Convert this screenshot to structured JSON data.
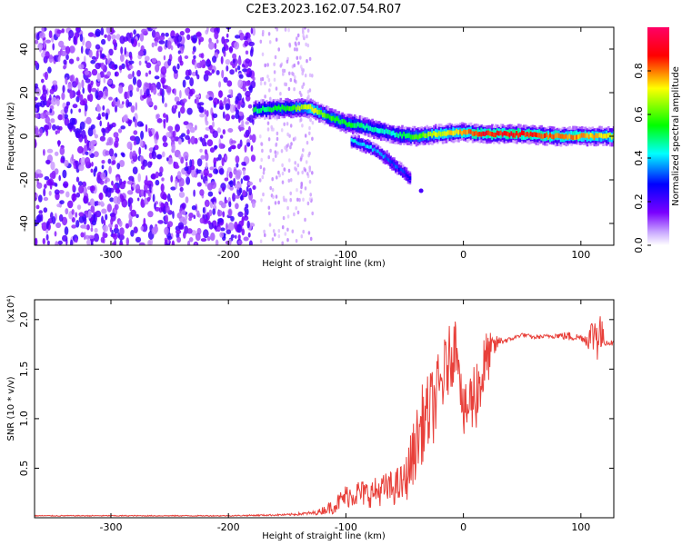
{
  "title": "C2E3.2023.162.07.54.R07",
  "chart_data": [
    {
      "type": "heatmap",
      "xlabel": "Height of straight line (km)",
      "ylabel": "Frequency (Hz)",
      "xlim": [
        -365,
        128
      ],
      "ylim": [
        -50,
        50
      ],
      "xticks": [
        -300,
        -200,
        -100,
        0,
        100
      ],
      "yticks": [
        -40,
        -20,
        0,
        20,
        40
      ],
      "colorbar": {
        "label": "Normalized spectral amplitude",
        "range": [
          0.0,
          1.0
        ],
        "ticks": [
          "0.0",
          "0.2",
          "0.4",
          "0.6",
          "0.8"
        ],
        "colormap": [
          "#ffffff",
          "#7a00ff",
          "#0000ff",
          "#00ffff",
          "#00ff00",
          "#ffff00",
          "#ff0000",
          "#ff00aa"
        ]
      },
      "noise_region_x": [
        -365,
        -178
      ],
      "ridge": {
        "x": [
          -178,
          -150,
          -130,
          -115,
          -100,
          -80,
          -60,
          -40,
          -20,
          0,
          20,
          50,
          80,
          110,
          128
        ],
        "y": [
          12,
          13,
          13,
          9,
          6,
          4,
          1,
          0,
          1,
          2,
          1,
          1,
          0,
          0,
          0
        ],
        "amplitude": [
          0.5,
          0.55,
          0.7,
          0.6,
          0.55,
          0.5,
          0.45,
          0.6,
          0.7,
          0.75,
          0.85,
          0.85,
          0.8,
          0.75,
          0.7
        ]
      },
      "branch": {
        "x": [
          -95,
          -80,
          -65,
          -52,
          -45
        ],
        "y": [
          -2,
          -5,
          -10,
          -16,
          -19
        ],
        "amplitude": [
          0.45,
          0.4,
          0.35,
          0.3,
          0.25
        ]
      }
    },
    {
      "type": "line",
      "xlabel": "Height of straight line (km)",
      "ylabel": "SNR (10 * v/v)",
      "multiplier_label": "(x10⁴)",
      "xlim": [
        -365,
        128
      ],
      "ylim": [
        0,
        2.2
      ],
      "xticks": [
        -300,
        -200,
        -100,
        0,
        100
      ],
      "yticks": [
        0.5,
        1.0,
        1.5,
        2.0
      ],
      "ytick_labels": [
        "0.5",
        "1.0",
        "1.5",
        "2.0"
      ],
      "color": "#e8403a",
      "series": [
        {
          "x": [
            -365,
            -300,
            -200,
            -150,
            -125,
            -110,
            -100,
            -90,
            -80,
            -70,
            -60,
            -50,
            -45,
            -40,
            -35,
            -30,
            -25,
            -20,
            -15,
            -10,
            -5,
            0,
            5,
            10,
            15,
            20,
            25,
            30,
            40,
            50,
            60,
            70,
            80,
            90,
            100,
            105,
            110,
            115,
            120,
            128
          ],
          "y": [
            0.02,
            0.02,
            0.02,
            0.03,
            0.05,
            0.12,
            0.22,
            0.25,
            0.24,
            0.28,
            0.3,
            0.35,
            0.55,
            0.75,
            0.95,
            1.05,
            1.15,
            1.3,
            1.5,
            1.65,
            1.8,
            1.0,
            1.15,
            1.25,
            1.4,
            1.6,
            1.7,
            1.78,
            1.8,
            1.85,
            1.82,
            1.83,
            1.84,
            1.83,
            1.82,
            1.8,
            1.85,
            1.9,
            1.78,
            1.76
          ],
          "spread": [
            0.005,
            0.005,
            0.005,
            0.01,
            0.02,
            0.08,
            0.12,
            0.14,
            0.14,
            0.16,
            0.18,
            0.22,
            0.3,
            0.35,
            0.4,
            0.4,
            0.4,
            0.4,
            0.35,
            0.35,
            0.3,
            0.25,
            0.35,
            0.4,
            0.4,
            0.3,
            0.15,
            0.05,
            0.02,
            0.02,
            0.02,
            0.02,
            0.03,
            0.05,
            0.03,
            0.08,
            0.2,
            0.35,
            0.05,
            0.02
          ]
        }
      ]
    }
  ]
}
